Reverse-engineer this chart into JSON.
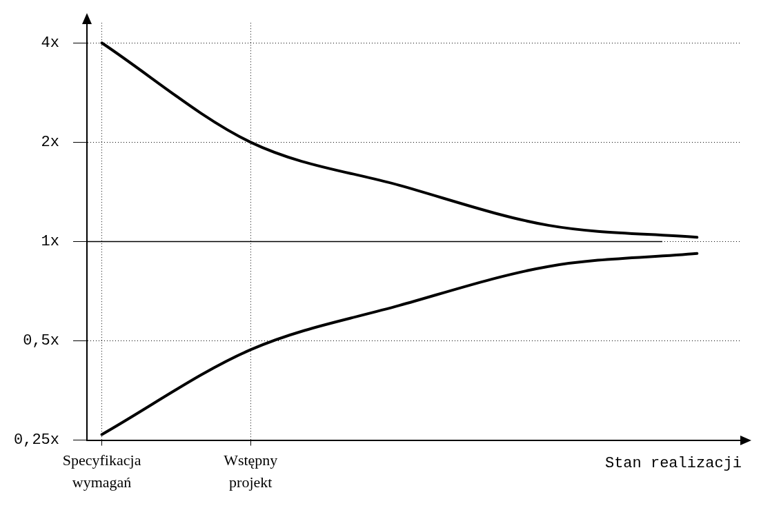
{
  "chart_data": {
    "type": "line",
    "xlabel": "Stan realizacji",
    "log": "y",
    "categories": [
      "Specyfikacja wymagań",
      "Wstępny projekt",
      null,
      null,
      null
    ],
    "ylim": [
      0.25,
      4.6
    ],
    "yticks": [
      {
        "value": 0.25,
        "label": "0,25x"
      },
      {
        "value": 0.5,
        "label": "0,5x"
      },
      {
        "value": 1,
        "label": "1x"
      },
      {
        "value": 2,
        "label": "2x"
      },
      {
        "value": 4,
        "label": "4x"
      }
    ],
    "grid": true,
    "line_style": "solid",
    "marker": "none",
    "legend": false,
    "ref_lines": [
      {
        "axis": "y",
        "value": 1,
        "label": null,
        "color": "#000000",
        "line_style": "solid"
      }
    ],
    "series": [
      {
        "color": "#000000",
        "values": [
          4,
          2,
          1.48,
          1.12,
          1.03
        ]
      },
      {
        "color": "#000000",
        "values": [
          0.26,
          0.47,
          0.64,
          0.84,
          0.92
        ]
      }
    ]
  }
}
